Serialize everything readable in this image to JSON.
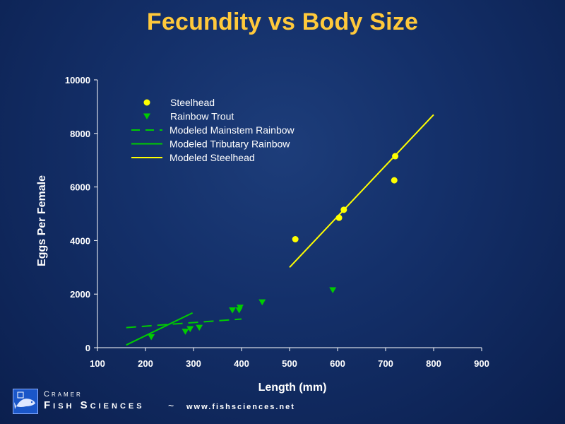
{
  "title": "Fecundity vs Body Size",
  "chart_data": {
    "type": "scatter",
    "title": "Fecundity vs Body Size",
    "xlabel": "Length (mm)",
    "ylabel": "Eggs Per Female",
    "xlim": [
      100,
      900
    ],
    "ylim": [
      0,
      10000
    ],
    "xticks": [
      100,
      200,
      300,
      400,
      500,
      600,
      700,
      800,
      900
    ],
    "yticks": [
      0,
      2000,
      4000,
      6000,
      8000,
      10000
    ],
    "grid": false,
    "legend_position": "top-left",
    "series": [
      {
        "name": "Steelhead",
        "kind": "points",
        "marker": "circle",
        "color": "#ffff00",
        "points": [
          [
            512,
            4050
          ],
          [
            603,
            4850
          ],
          [
            613,
            5150
          ],
          [
            718,
            6250
          ],
          [
            720,
            7150
          ]
        ]
      },
      {
        "name": "Rainbow Trout",
        "kind": "points",
        "marker": "triangle-down",
        "color": "#00cc00",
        "points": [
          [
            212,
            400
          ],
          [
            283,
            600
          ],
          [
            293,
            700
          ],
          [
            312,
            750
          ],
          [
            381,
            1400
          ],
          [
            395,
            1400
          ],
          [
            397,
            1500
          ],
          [
            443,
            1700
          ],
          [
            590,
            2150
          ]
        ]
      },
      {
        "name": "Modeled Mainstem Rainbow",
        "kind": "line",
        "dash": "dashed",
        "color": "#00cc00",
        "points": [
          [
            160,
            750
          ],
          [
            400,
            1070
          ]
        ]
      },
      {
        "name": "Modeled Tributary Rainbow",
        "kind": "line",
        "dash": "solid",
        "color": "#00cc00",
        "points": [
          [
            160,
            100
          ],
          [
            298,
            1300
          ]
        ]
      },
      {
        "name": "Modeled Steelhead",
        "kind": "line",
        "dash": "solid",
        "color": "#ffff00",
        "points": [
          [
            500,
            3000
          ],
          [
            800,
            8700
          ]
        ]
      }
    ]
  },
  "footer": {
    "company_top": "Cramer",
    "company_main": "Fish Sciences",
    "separator": "~",
    "url": "www.fishsciences.net"
  }
}
